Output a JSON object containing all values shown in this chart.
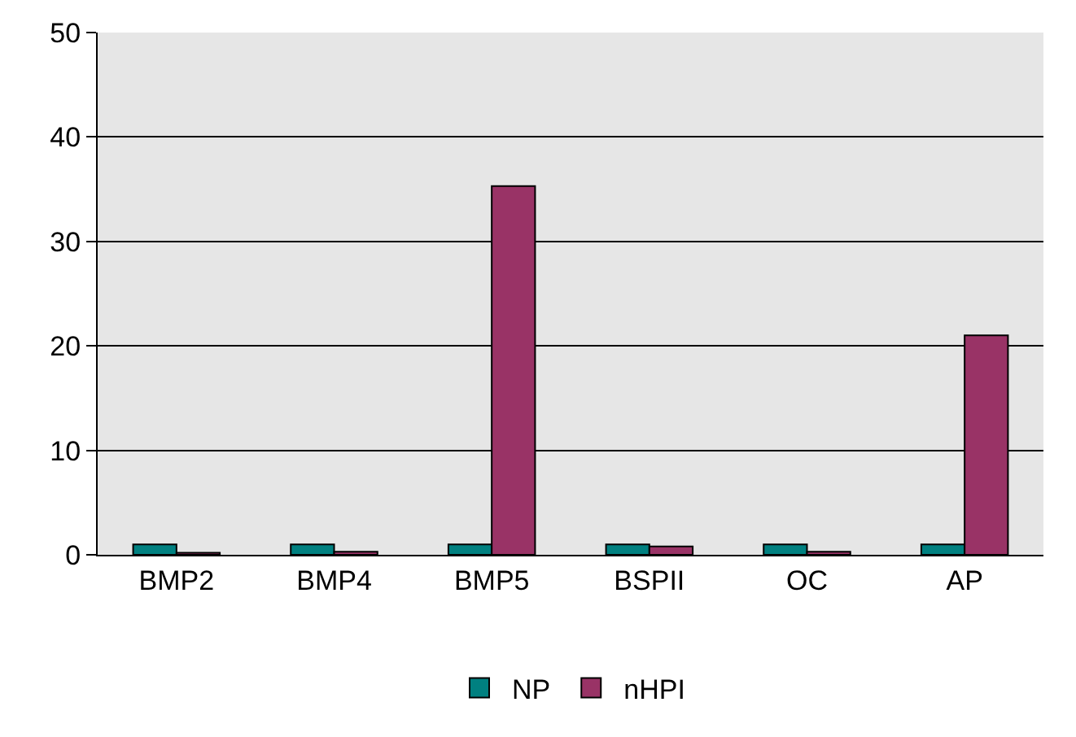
{
  "chart_data": {
    "type": "bar",
    "categories": [
      "BMP2",
      "BMP4",
      "BMP5",
      "BSPII",
      "OC",
      "AP"
    ],
    "series": [
      {
        "name": "NP",
        "color": "#008080",
        "values": [
          1,
          1,
          1,
          1,
          1,
          1
        ]
      },
      {
        "name": "nHPI",
        "color": "#993366",
        "values": [
          0.2,
          0.3,
          35.3,
          0.8,
          0.3,
          21
        ]
      }
    ],
    "ylim": [
      0,
      50
    ],
    "yticks": [
      0,
      10,
      20,
      30,
      40,
      50
    ],
    "grid": "y",
    "legend": "bottom"
  }
}
